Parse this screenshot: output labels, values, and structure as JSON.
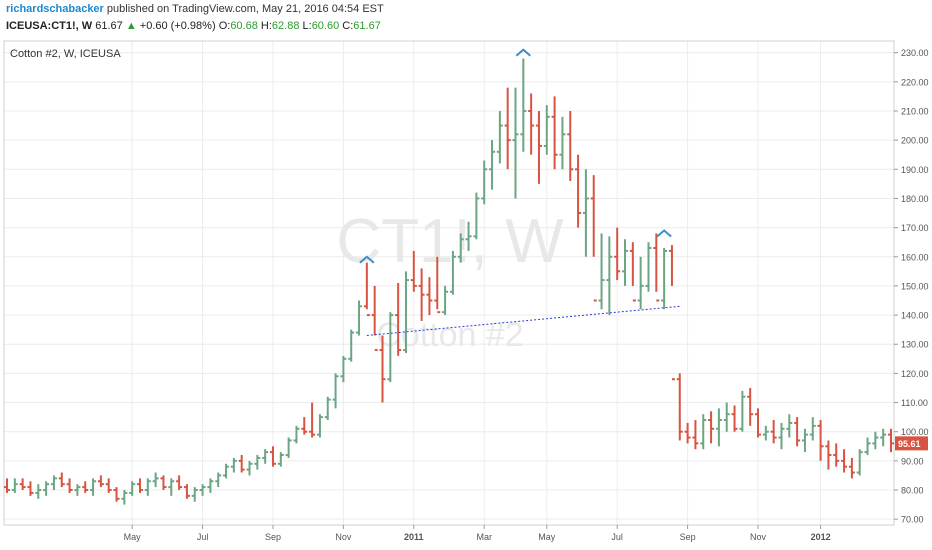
{
  "header": {
    "author": "richardschabacker",
    "published_text": "published on TradingView.com, May 21, 2016 04:54 EST",
    "symbol": "ICEUSA:CT1!, W",
    "last": "61.67",
    "arrow": "▲",
    "change": "+0.60 (+0.98%)",
    "o_label": "O:",
    "o": "60.68",
    "h_label": "H:",
    "h": "62.88",
    "l_label": "L:",
    "l": "60.60",
    "c_label": "C:",
    "c": "61.67"
  },
  "chart_data": {
    "type": "ohlc",
    "title": "Cotton #2, W, ICEUSA",
    "watermark_symbol": "CT1!, W",
    "watermark_name": "Cotton #2",
    "y_ticks": [
      "230.00",
      "220.00",
      "210.00",
      "200.00",
      "190.00",
      "180.00",
      "170.00",
      "160.00",
      "150.00",
      "140.00",
      "130.00",
      "120.00",
      "110.00",
      "100.00",
      "90.00",
      "80.00",
      "70.00"
    ],
    "ylim": [
      68,
      234
    ],
    "x_ticks": [
      {
        "label": "May",
        "w": -36
      },
      {
        "label": "Jul",
        "w": -27
      },
      {
        "label": "Sep",
        "w": -18
      },
      {
        "label": "Nov",
        "w": -9
      },
      {
        "label": "2011",
        "w": 0
      },
      {
        "label": "Mar",
        "w": 9
      },
      {
        "label": "May",
        "w": 17
      },
      {
        "label": "Jul",
        "w": 26
      },
      {
        "label": "Sep",
        "w": 35
      },
      {
        "label": "Nov",
        "w": 44
      },
      {
        "label": "2012",
        "w": 52
      }
    ],
    "last_price_label": "95.61",
    "bull_color": "#6ba583",
    "bear_color": "#d75442",
    "bars": [
      [
        81,
        84,
        79,
        80
      ],
      [
        80,
        84,
        79,
        82
      ],
      [
        82,
        84,
        80,
        81
      ],
      [
        81,
        83,
        78,
        79
      ],
      [
        79,
        82,
        77,
        80
      ],
      [
        80,
        83,
        78,
        82
      ],
      [
        82,
        85,
        80,
        84
      ],
      [
        84,
        86,
        81,
        82
      ],
      [
        82,
        84,
        79,
        80
      ],
      [
        80,
        82,
        78,
        81
      ],
      [
        81,
        83,
        79,
        80
      ],
      [
        80,
        84,
        78,
        83
      ],
      [
        83,
        85,
        81,
        82
      ],
      [
        82,
        84,
        79,
        80
      ],
      [
        80,
        81,
        76,
        77
      ],
      [
        77,
        80,
        75,
        79
      ],
      [
        79,
        83,
        78,
        82
      ],
      [
        82,
        84,
        79,
        80
      ],
      [
        80,
        84,
        78,
        83
      ],
      [
        83,
        86,
        81,
        84
      ],
      [
        84,
        85,
        80,
        81
      ],
      [
        81,
        84,
        78,
        83
      ],
      [
        83,
        85,
        80,
        81
      ],
      [
        81,
        82,
        77,
        78
      ],
      [
        78,
        81,
        76,
        80
      ],
      [
        80,
        82,
        78,
        81
      ],
      [
        81,
        84,
        79,
        83
      ],
      [
        83,
        86,
        81,
        85
      ],
      [
        85,
        89,
        84,
        88
      ],
      [
        88,
        91,
        86,
        90
      ],
      [
        90,
        92,
        86,
        87
      ],
      [
        87,
        90,
        85,
        89
      ],
      [
        89,
        92,
        87,
        91
      ],
      [
        91,
        94,
        89,
        93
      ],
      [
        93,
        95,
        88,
        89
      ],
      [
        89,
        93,
        88,
        92
      ],
      [
        92,
        98,
        91,
        97
      ],
      [
        97,
        102,
        96,
        101
      ],
      [
        101,
        105,
        99,
        100
      ],
      [
        100,
        110,
        98,
        99
      ],
      [
        99,
        106,
        98,
        105
      ],
      [
        105,
        112,
        104,
        111
      ],
      [
        111,
        120,
        108,
        119
      ],
      [
        119,
        126,
        117,
        125
      ],
      [
        125,
        135,
        124,
        134
      ],
      [
        134,
        145,
        133,
        143
      ],
      [
        143,
        158,
        142,
        140
      ],
      [
        140,
        150,
        133,
        128
      ],
      [
        128,
        133,
        110,
        118
      ],
      [
        118,
        141,
        117,
        140
      ],
      [
        140,
        151,
        126,
        128
      ],
      [
        128,
        155,
        127,
        152
      ],
      [
        152,
        162,
        148,
        150
      ],
      [
        150,
        156,
        138,
        147
      ],
      [
        147,
        153,
        140,
        145
      ],
      [
        145,
        160,
        142,
        141
      ],
      [
        141,
        150,
        140,
        148
      ],
      [
        148,
        162,
        147,
        160
      ],
      [
        160,
        168,
        158,
        166
      ],
      [
        166,
        172,
        162,
        167
      ],
      [
        167,
        182,
        166,
        180
      ],
      [
        180,
        193,
        178,
        190
      ],
      [
        190,
        200,
        183,
        196
      ],
      [
        196,
        210,
        192,
        205
      ],
      [
        205,
        218,
        190,
        200
      ],
      [
        200,
        218,
        180,
        202
      ],
      [
        202,
        228,
        196,
        210
      ],
      [
        210,
        216,
        195,
        205
      ],
      [
        205,
        210,
        185,
        198
      ],
      [
        198,
        212,
        195,
        208
      ],
      [
        208,
        215,
        190,
        195
      ],
      [
        195,
        208,
        190,
        202
      ],
      [
        202,
        210,
        186,
        190
      ],
      [
        190,
        195,
        170,
        175
      ],
      [
        175,
        190,
        160,
        180
      ],
      [
        180,
        188,
        160,
        145
      ],
      [
        145,
        168,
        142,
        152
      ],
      [
        152,
        167,
        140,
        160
      ],
      [
        160,
        170,
        152,
        155
      ],
      [
        155,
        166,
        150,
        162
      ],
      [
        162,
        165,
        150,
        145
      ],
      [
        145,
        160,
        142,
        150
      ],
      [
        150,
        165,
        148,
        163
      ],
      [
        163,
        168,
        148,
        145
      ],
      [
        145,
        163,
        142,
        162
      ],
      [
        162,
        164,
        150,
        118
      ],
      [
        118,
        120,
        97,
        100
      ],
      [
        100,
        103,
        96,
        98
      ],
      [
        98,
        104,
        94,
        96
      ],
      [
        96,
        106,
        94,
        104
      ],
      [
        104,
        107,
        96,
        101
      ],
      [
        101,
        108,
        95,
        104
      ],
      [
        104,
        110,
        100,
        106
      ],
      [
        106,
        109,
        100,
        101
      ],
      [
        101,
        114,
        100,
        112
      ],
      [
        112,
        115,
        102,
        106
      ],
      [
        106,
        108,
        98,
        99
      ],
      [
        99,
        102,
        97,
        100
      ],
      [
        100,
        104,
        96,
        98
      ],
      [
        98,
        103,
        94,
        101
      ],
      [
        101,
        106,
        98,
        103
      ],
      [
        103,
        105,
        95,
        97
      ],
      [
        97,
        101,
        93,
        99
      ],
      [
        99,
        105,
        97,
        102
      ],
      [
        102,
        104,
        90,
        95
      ],
      [
        95,
        97,
        87,
        92
      ],
      [
        92,
        96,
        88,
        90
      ],
      [
        90,
        94,
        86,
        88
      ],
      [
        88,
        91,
        84,
        86
      ],
      [
        86,
        94,
        85,
        93
      ],
      [
        93,
        98,
        92,
        96
      ],
      [
        96,
        100,
        94,
        98
      ],
      [
        98,
        101,
        95,
        99
      ],
      [
        99,
        101,
        93,
        96
      ]
    ],
    "necklines": [
      {
        "from": [
          46,
          133
        ],
        "to": [
          86,
          143
        ]
      }
    ],
    "peak_markers": [
      {
        "bar": 46,
        "price": 160
      },
      {
        "bar": 66,
        "price": 231
      },
      {
        "bar": 84,
        "price": 169
      }
    ]
  }
}
